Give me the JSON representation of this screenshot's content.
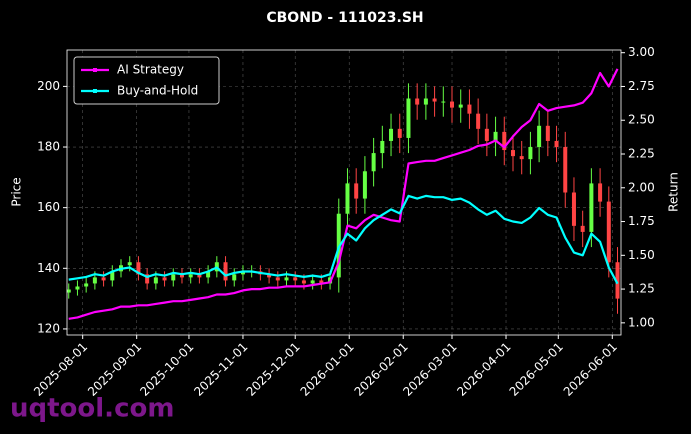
{
  "chart_data": {
    "type": "candlestick",
    "title": "CBOND - 111023.SH",
    "ylabel": "Price",
    "y2label": "Return",
    "watermark": "uqtool.com",
    "x": [
      "2025-07-24",
      "2025-07-29",
      "2025-08-03",
      "2025-08-08",
      "2025-08-13",
      "2025-08-18",
      "2025-08-23",
      "2025-08-28",
      "2025-09-02",
      "2025-09-07",
      "2025-09-12",
      "2025-09-17",
      "2025-09-22",
      "2025-09-27",
      "2025-10-02",
      "2025-10-07",
      "2025-10-12",
      "2025-10-17",
      "2025-10-22",
      "2025-10-27",
      "2025-11-01",
      "2025-11-06",
      "2025-11-11",
      "2025-11-16",
      "2025-11-21",
      "2025-11-26",
      "2025-12-01",
      "2025-12-06",
      "2025-12-11",
      "2025-12-16",
      "2025-12-21",
      "2025-12-26",
      "2025-12-31",
      "2026-01-05",
      "2026-01-10",
      "2026-01-15",
      "2026-01-20",
      "2026-01-25",
      "2026-01-30",
      "2026-02-04",
      "2026-02-09",
      "2026-02-14",
      "2026-02-19",
      "2026-02-24",
      "2026-03-01",
      "2026-03-06",
      "2026-03-11",
      "2026-03-16",
      "2026-03-21",
      "2026-03-26",
      "2026-03-31",
      "2026-04-05",
      "2026-04-10",
      "2026-04-15",
      "2026-04-20",
      "2026-04-25",
      "2026-04-30",
      "2026-05-05",
      "2026-05-10",
      "2026-05-15",
      "2026-05-20",
      "2026-05-25",
      "2026-05-30",
      "2026-06-04"
    ],
    "open": [
      132,
      133,
      134,
      135,
      137,
      136,
      139,
      141,
      142,
      138,
      135,
      137,
      136,
      138,
      137,
      138,
      137,
      139,
      142,
      136,
      138,
      139,
      139,
      138,
      137,
      136,
      137,
      136,
      135,
      136,
      135,
      137,
      158,
      168,
      163,
      172,
      178,
      182,
      186,
      183,
      196,
      194,
      196,
      195,
      195,
      193,
      194,
      191,
      186,
      182,
      185,
      179,
      177,
      176,
      180,
      187,
      182,
      180,
      165,
      154,
      152,
      168,
      162,
      142
    ],
    "high": [
      135,
      136,
      137,
      139,
      139,
      141,
      143,
      144,
      144,
      140,
      139,
      139,
      140,
      140,
      140,
      140,
      141,
      144,
      144,
      140,
      141,
      141,
      141,
      140,
      139,
      139,
      139,
      138,
      138,
      138,
      139,
      163,
      173,
      173,
      177,
      183,
      187,
      191,
      191,
      201,
      201,
      201,
      200,
      200,
      200,
      199,
      199,
      196,
      191,
      190,
      190,
      184,
      182,
      185,
      192,
      192,
      187,
      185,
      170,
      159,
      173,
      173,
      167,
      147
    ],
    "low": [
      130,
      131,
      132,
      133,
      134,
      134,
      137,
      139,
      136,
      133,
      133,
      134,
      134,
      135,
      135,
      135,
      135,
      137,
      134,
      134,
      136,
      137,
      136,
      135,
      134,
      134,
      134,
      133,
      133,
      133,
      133,
      132,
      153,
      158,
      158,
      167,
      173,
      177,
      178,
      178,
      189,
      189,
      190,
      190,
      188,
      188,
      186,
      181,
      177,
      177,
      174,
      172,
      171,
      171,
      175,
      177,
      175,
      160,
      149,
      147,
      147,
      157,
      137,
      125
    ],
    "close": [
      133,
      134,
      135,
      137,
      136,
      139,
      141,
      142,
      138,
      135,
      137,
      136,
      138,
      137,
      138,
      137,
      139,
      142,
      136,
      138,
      139,
      139,
      138,
      137,
      136,
      137,
      136,
      135,
      136,
      135,
      137,
      158,
      168,
      163,
      172,
      178,
      182,
      186,
      183,
      196,
      194,
      196,
      195,
      195,
      193,
      194,
      191,
      186,
      182,
      185,
      179,
      177,
      176,
      180,
      187,
      182,
      180,
      165,
      154,
      152,
      168,
      162,
      142,
      130
    ],
    "up_color": "#66ff44",
    "down_color": "#ff4444",
    "series": [
      {
        "name": "AI Strategy",
        "color": "#ff00ff",
        "axis": "y2",
        "values": [
          1.03,
          1.04,
          1.06,
          1.08,
          1.09,
          1.1,
          1.12,
          1.12,
          1.13,
          1.13,
          1.14,
          1.15,
          1.16,
          1.16,
          1.17,
          1.18,
          1.19,
          1.21,
          1.21,
          1.22,
          1.24,
          1.25,
          1.25,
          1.26,
          1.26,
          1.27,
          1.27,
          1.27,
          1.28,
          1.29,
          1.3,
          1.45,
          1.72,
          1.7,
          1.76,
          1.8,
          1.78,
          1.76,
          1.75,
          2.18,
          2.19,
          2.2,
          2.2,
          2.22,
          2.24,
          2.26,
          2.28,
          2.31,
          2.32,
          2.35,
          2.3,
          2.38,
          2.45,
          2.5,
          2.62,
          2.57,
          2.59,
          2.6,
          2.61,
          2.63,
          2.7,
          2.85,
          2.75,
          2.88
        ]
      },
      {
        "name": "Buy-and-Hold",
        "color": "#00ffff",
        "axis": "y2",
        "values": [
          1.32,
          1.33,
          1.34,
          1.36,
          1.35,
          1.38,
          1.4,
          1.41,
          1.37,
          1.34,
          1.36,
          1.35,
          1.37,
          1.36,
          1.37,
          1.36,
          1.38,
          1.41,
          1.35,
          1.37,
          1.38,
          1.38,
          1.37,
          1.36,
          1.35,
          1.36,
          1.35,
          1.34,
          1.35,
          1.34,
          1.36,
          1.56,
          1.66,
          1.61,
          1.7,
          1.76,
          1.8,
          1.84,
          1.81,
          1.94,
          1.92,
          1.94,
          1.93,
          1.93,
          1.91,
          1.92,
          1.89,
          1.84,
          1.8,
          1.83,
          1.77,
          1.75,
          1.74,
          1.78,
          1.85,
          1.8,
          1.78,
          1.63,
          1.52,
          1.5,
          1.66,
          1.6,
          1.41,
          1.29
        ]
      }
    ],
    "xlim": [
      "2025-07-23",
      "2026-06-06"
    ],
    "xticks": [
      "2025-08-01",
      "2025-09-01",
      "2025-10-01",
      "2025-11-01",
      "2025-12-01",
      "2026-01-01",
      "2026-02-01",
      "2026-03-01",
      "2026-04-01",
      "2026-05-01",
      "2026-06-01"
    ],
    "ylim": [
      118,
      212
    ],
    "yticks": [
      120,
      140,
      160,
      180,
      200
    ],
    "y2lim": [
      0.91,
      3.02
    ],
    "y2ticks": [
      {
        "value": 1,
        "label": "1.00"
      },
      {
        "value": 1.25,
        "label": "1.25"
      },
      {
        "value": 1.5,
        "label": "1.50"
      },
      {
        "value": 1.75,
        "label": "1.75"
      },
      {
        "value": 2,
        "label": "2.00"
      },
      {
        "value": 2.25,
        "label": "2.25"
      },
      {
        "value": 2.5,
        "label": "2.50"
      },
      {
        "value": 2.75,
        "label": "2.75"
      },
      {
        "value": 3,
        "label": "3.00"
      }
    ],
    "grid": true,
    "legend": "upper left"
  }
}
